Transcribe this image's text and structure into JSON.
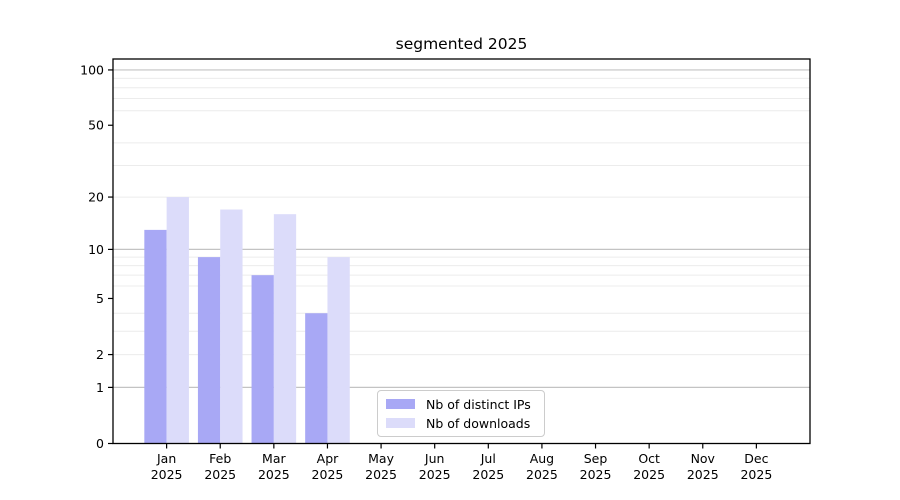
{
  "chart_data": {
    "type": "bar",
    "title": "segmented 2025",
    "categories": [
      "Jan",
      "Feb",
      "Mar",
      "Apr",
      "May",
      "Jun",
      "Jul",
      "Aug",
      "Sep",
      "Oct",
      "Nov",
      "Dec"
    ],
    "category_year_label": "2025",
    "series": [
      {
        "name": "Nb of distinct IPs",
        "color": "#a8a8f5",
        "values": [
          13,
          9,
          7,
          4,
          0,
          0,
          0,
          0,
          0,
          0,
          0,
          0
        ]
      },
      {
        "name": "Nb of downloads",
        "color": "#dcdcfa",
        "values": [
          20,
          17,
          16,
          9,
          0,
          0,
          0,
          0,
          0,
          0,
          0,
          0
        ]
      }
    ],
    "y_scale": "log10(1+x)",
    "y_tick_values": [
      0,
      1,
      2,
      5,
      10,
      20,
      50,
      100
    ],
    "y_tick_labels": [
      "0",
      "1",
      "2",
      "5",
      "10",
      "20",
      "50",
      "100"
    ],
    "y_gridlines_major": [
      1,
      10,
      100
    ],
    "y_gridlines_minor": [
      2,
      3,
      4,
      6,
      7,
      8,
      9,
      20,
      30,
      40,
      60,
      70,
      80,
      90
    ],
    "ylim_log_max": 2.063,
    "xlim_slots": 13,
    "grid": true,
    "legend_position": "lower center inside plot",
    "legend_entries": [
      "Nb of distinct IPs",
      "Nb of downloads"
    ]
  },
  "colors": {
    "bar_ips": "#a8a8f5",
    "bar_downloads": "#dcdcfa",
    "grid_major": "#c3c3c3",
    "grid_minor": "#ececec",
    "axis_spine": "#000000",
    "tick_text": "#000000",
    "legend_border": "#cccccc",
    "background": "#ffffff"
  }
}
